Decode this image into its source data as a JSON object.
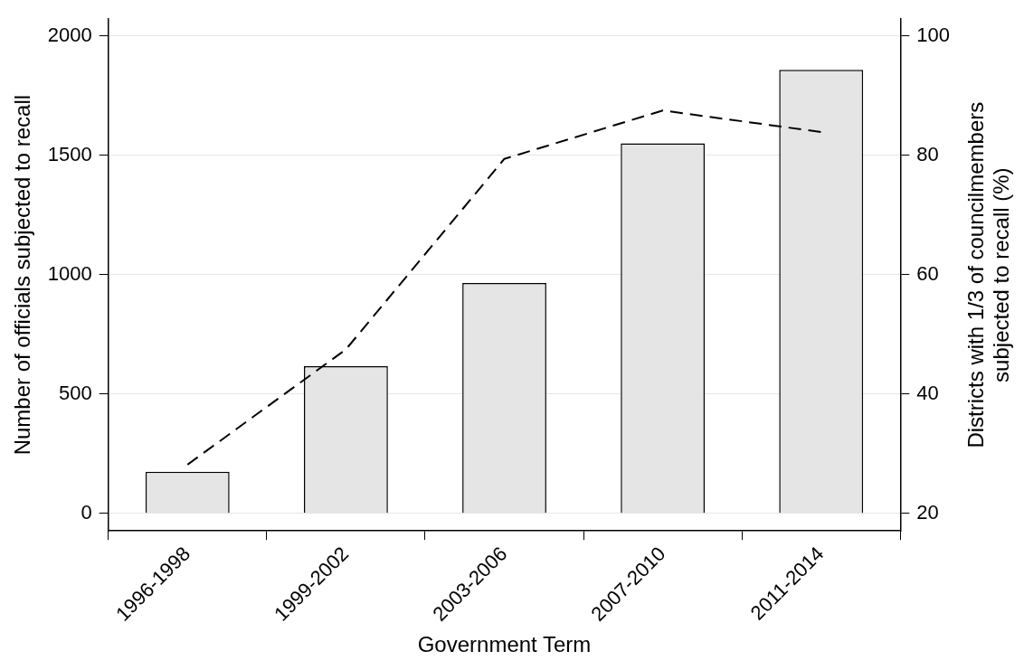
{
  "chart_data": {
    "type": "bar",
    "xlabel": "Government Term",
    "ylabel": "Number of officials subjected to recall",
    "y2label": "Districts with 1/3 of councilmembers\nsubjected to recall (%)",
    "categories": [
      "1996-1998",
      "1999-2002",
      "2003-2006",
      "2007-2010",
      "2011-2014"
    ],
    "series": [
      {
        "color": "#e5e5e5",
        "values": [
          175,
          617,
          965,
          1550,
          1858
        ]
      },
      {
        "type": "line",
        "axis": "y2",
        "color": "#000000",
        "line_style": "dashed",
        "marker": "none",
        "values": [
          28.2,
          47.5,
          79.4,
          87.5,
          83.9
        ]
      }
    ],
    "ylim": [
      -73,
      2070
    ],
    "yticks": [
      0,
      500,
      1000,
      1500,
      2000
    ],
    "y2lim": [
      17.1,
      102.8
    ],
    "y2ticks": [
      20,
      40,
      60,
      80,
      100
    ],
    "grid": "y",
    "legend": false
  }
}
